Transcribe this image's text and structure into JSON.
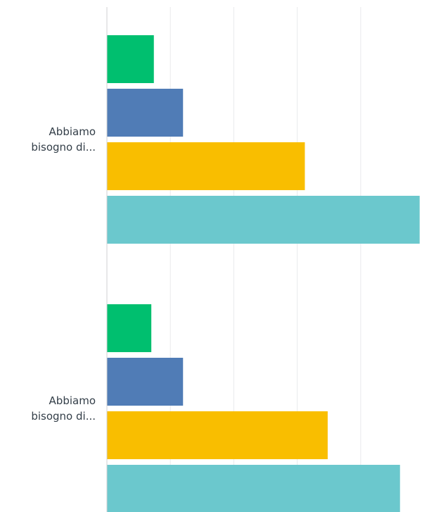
{
  "chart_data": {
    "type": "bar",
    "orientation": "horizontal",
    "categories": [
      {
        "label_lines": [
          "Abbiamo",
          "bisogno di..."
        ]
      },
      {
        "label_lines": [
          "Abbiamo",
          "bisogno di..."
        ]
      }
    ],
    "series": [
      {
        "values": [
          7.4,
          7.0
        ],
        "color": "#00bf6f"
      },
      {
        "values": [
          12.0,
          12.0
        ],
        "color": "#507cb6"
      },
      {
        "values": [
          31.2,
          34.8
        ],
        "color": "#f9be00"
      },
      {
        "values": [
          49.3,
          46.2
        ],
        "color": "#6bc8cd"
      }
    ],
    "xlim": [
      0,
      50
    ],
    "grid": true,
    "legend": "none"
  }
}
